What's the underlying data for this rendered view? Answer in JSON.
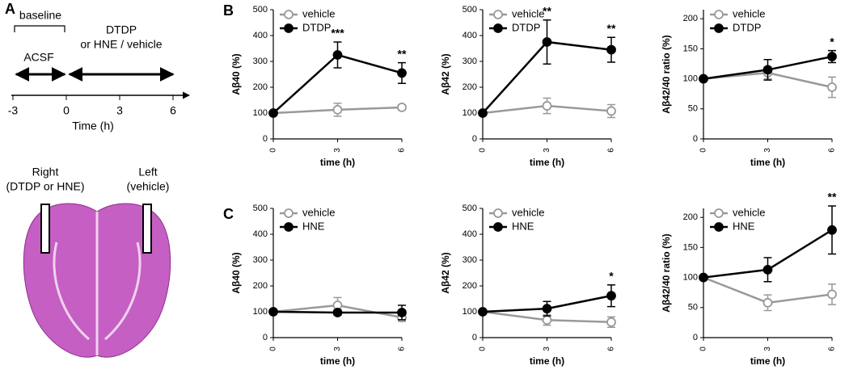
{
  "panel_labels": [
    "A",
    "B",
    "C"
  ],
  "timeline": {
    "phases": [
      "baseline",
      "ACSF",
      "DTDP",
      "or HNE / vehicle"
    ],
    "ticks": [
      -3,
      0,
      3,
      6
    ],
    "xlabel": "Time (h)"
  },
  "brain": {
    "right": "Right",
    "right_sub": "(DTDP or HNE)",
    "left": "Left",
    "left_sub": "(vehicle)"
  },
  "chart_data": [
    {
      "type": "line",
      "ylabel": "Aβ40 (%)",
      "xlabel": "time (h)",
      "x": [
        0,
        3,
        6
      ],
      "xlim": [
        0,
        6
      ],
      "xticks": [
        0,
        3,
        6
      ],
      "ylim": [
        0,
        500
      ],
      "yticks": [
        0,
        100,
        200,
        300,
        400,
        500
      ],
      "series": [
        {
          "name": "vehicle",
          "color": "#999999",
          "marker": "open",
          "values": [
            100,
            113,
            122
          ],
          "errors": [
            0,
            25,
            10
          ]
        },
        {
          "name": "DTDP",
          "color": "#000000",
          "marker": "filled",
          "values": [
            100,
            325,
            255
          ],
          "errors": [
            0,
            50,
            40
          ]
        }
      ],
      "annotations": [
        {
          "x": 3,
          "text": "***"
        },
        {
          "x": 6,
          "text": "**"
        }
      ]
    },
    {
      "type": "line",
      "ylabel": "Aβ42 (%)",
      "xlabel": "time (h)",
      "x": [
        0,
        3,
        6
      ],
      "xlim": [
        0,
        6
      ],
      "xticks": [
        0,
        3,
        6
      ],
      "ylim": [
        0,
        500
      ],
      "yticks": [
        0,
        100,
        200,
        300,
        400,
        500
      ],
      "series": [
        {
          "name": "vehicle",
          "color": "#999999",
          "marker": "open",
          "values": [
            100,
            128,
            108
          ],
          "errors": [
            0,
            30,
            25
          ]
        },
        {
          "name": "DTDP",
          "color": "#000000",
          "marker": "filled",
          "values": [
            100,
            375,
            345
          ],
          "errors": [
            0,
            85,
            48
          ]
        }
      ],
      "annotations": [
        {
          "x": 3,
          "text": "**"
        },
        {
          "x": 6,
          "text": "**"
        }
      ]
    },
    {
      "type": "line",
      "ylabel": "Aβ42/40 ratio (%)",
      "xlabel": "time (h)",
      "x": [
        0,
        3,
        6
      ],
      "xlim": [
        0,
        6
      ],
      "xticks": [
        0,
        3,
        6
      ],
      "ylim": [
        0,
        215
      ],
      "yticks": [
        0,
        50,
        100,
        150,
        200
      ],
      "series": [
        {
          "name": "vehicle",
          "color": "#999999",
          "marker": "open",
          "values": [
            100,
            110,
            86
          ],
          "errors": [
            0,
            10,
            17
          ]
        },
        {
          "name": "DTDP",
          "color": "#000000",
          "marker": "filled",
          "values": [
            100,
            115,
            137
          ],
          "errors": [
            0,
            17,
            10
          ]
        }
      ],
      "annotations": [
        {
          "x": 6,
          "text": "*"
        }
      ]
    },
    {
      "type": "line",
      "ylabel": "Aβ40 (%)",
      "xlabel": "time (h)",
      "x": [
        0,
        3,
        6
      ],
      "xlim": [
        0,
        6
      ],
      "xticks": [
        0,
        3,
        6
      ],
      "ylim": [
        0,
        500
      ],
      "yticks": [
        0,
        100,
        200,
        300,
        400,
        500
      ],
      "series": [
        {
          "name": "vehicle",
          "color": "#999999",
          "marker": "open",
          "values": [
            100,
            125,
            78
          ],
          "errors": [
            0,
            30,
            15
          ]
        },
        {
          "name": "HNE",
          "color": "#000000",
          "marker": "filled",
          "values": [
            100,
            97,
            97
          ],
          "errors": [
            0,
            10,
            28
          ]
        }
      ],
      "annotations": []
    },
    {
      "type": "line",
      "ylabel": "Aβ42 (%)",
      "xlabel": "time (h)",
      "x": [
        0,
        3,
        6
      ],
      "xlim": [
        0,
        6
      ],
      "xticks": [
        0,
        3,
        6
      ],
      "ylim": [
        0,
        500
      ],
      "yticks": [
        0,
        100,
        200,
        300,
        400,
        500
      ],
      "series": [
        {
          "name": "vehicle",
          "color": "#999999",
          "marker": "open",
          "values": [
            100,
            68,
            60
          ],
          "errors": [
            0,
            20,
            20
          ]
        },
        {
          "name": "HNE",
          "color": "#000000",
          "marker": "filled",
          "values": [
            100,
            112,
            162
          ],
          "errors": [
            0,
            28,
            42
          ]
        }
      ],
      "annotations": [
        {
          "x": 6,
          "text": "*"
        }
      ]
    },
    {
      "type": "line",
      "ylabel": "Aβ42/40 ratio (%)",
      "xlabel": "time (h)",
      "x": [
        0,
        3,
        6
      ],
      "xlim": [
        0,
        6
      ],
      "xticks": [
        0,
        3,
        6
      ],
      "ylim": [
        0,
        215
      ],
      "yticks": [
        0,
        50,
        100,
        150,
        200
      ],
      "series": [
        {
          "name": "vehicle",
          "color": "#999999",
          "marker": "open",
          "values": [
            100,
            58,
            72
          ],
          "errors": [
            0,
            13,
            17
          ]
        },
        {
          "name": "HNE",
          "color": "#000000",
          "marker": "filled",
          "values": [
            100,
            113,
            179
          ],
          "errors": [
            0,
            20,
            40
          ]
        }
      ],
      "annotations": [
        {
          "x": 6,
          "text": "**"
        }
      ]
    }
  ]
}
